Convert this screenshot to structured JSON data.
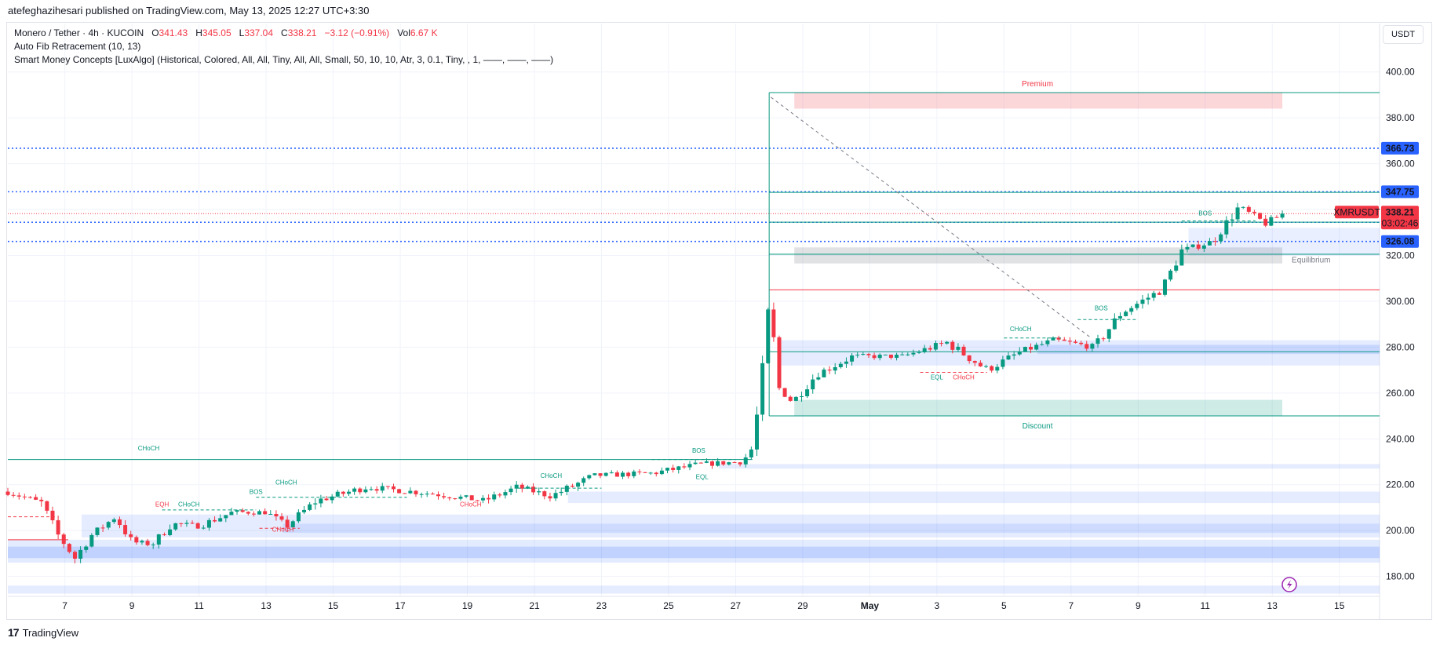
{
  "publisher_line": "atefeghazihesari published on TradingView.com, May 13, 2025 12:27 UTC+3:30",
  "legend": {
    "symbol": "Monero / Tether · 4h · KUCOIN",
    "o_label": "O",
    "o_value": "341.43",
    "h_label": "H",
    "h_value": "345.05",
    "l_label": "L",
    "l_value": "337.04",
    "c_label": "C",
    "c_value": "338.21",
    "change": "−3.12 (−0.91%)",
    "vol_label": "Vol",
    "vol_value": "6.67 K",
    "fib": "Auto Fib Retracement (10, 13)",
    "smc": "Smart Money Concepts [LuxAlgo] (Historical, Colored, All, All, Tiny, All, All, Small, 50, 10, 10, Atr, 3, 0.1, Tiny, , 1, ——, ——, ——)"
  },
  "currency": "USDT",
  "footer_brand": "TradingView",
  "footer_mark": "17",
  "colors": {
    "up": "#089981",
    "down": "#f23645",
    "level_blue": "#2962ff",
    "fib_green": "#089981"
  },
  "chart_data": {
    "type": "candlestick",
    "symbol": "XMRUSDT",
    "timeframe": "4h",
    "ylim": [
      172,
      404
    ],
    "y_ticks": [
      180,
      200,
      220,
      240,
      260,
      280,
      300,
      320,
      340,
      360,
      380,
      400
    ],
    "x_labels": [
      {
        "label": "7",
        "day": 7
      },
      {
        "label": "9",
        "day": 9
      },
      {
        "label": "11",
        "day": 11
      },
      {
        "label": "13",
        "day": 13
      },
      {
        "label": "15",
        "day": 15
      },
      {
        "label": "17",
        "day": 17
      },
      {
        "label": "19",
        "day": 19
      },
      {
        "label": "21",
        "day": 21
      },
      {
        "label": "23",
        "day": 23
      },
      {
        "label": "25",
        "day": 25
      },
      {
        "label": "27",
        "day": 27
      },
      {
        "label": "29",
        "day": 29
      },
      {
        "label": "May",
        "day": 31
      },
      {
        "label": "3",
        "day": 33
      },
      {
        "label": "5",
        "day": 35
      },
      {
        "label": "7",
        "day": 37
      },
      {
        "label": "9",
        "day": 39
      },
      {
        "label": "11",
        "day": 41
      },
      {
        "label": "13",
        "day": 43
      },
      {
        "label": "15",
        "day": 45
      }
    ],
    "x_range": [
      5.3,
      46.2
    ],
    "anchors": [
      {
        "day": 5.3,
        "price": 217
      },
      {
        "day": 6.3,
        "price": 212
      },
      {
        "day": 6.8,
        "price": 198
      },
      {
        "day": 7.3,
        "price": 188
      },
      {
        "day": 7.8,
        "price": 198
      },
      {
        "day": 8.5,
        "price": 206
      },
      {
        "day": 9.0,
        "price": 195
      },
      {
        "day": 9.6,
        "price": 194
      },
      {
        "day": 10.2,
        "price": 203
      },
      {
        "day": 11.0,
        "price": 202
      },
      {
        "day": 12.0,
        "price": 208
      },
      {
        "day": 13.0,
        "price": 208
      },
      {
        "day": 13.6,
        "price": 202
      },
      {
        "day": 14.5,
        "price": 213
      },
      {
        "day": 16.0,
        "price": 219
      },
      {
        "day": 18.0,
        "price": 216
      },
      {
        "day": 19.5,
        "price": 213
      },
      {
        "day": 20.5,
        "price": 219
      },
      {
        "day": 21.5,
        "price": 215
      },
      {
        "day": 22.8,
        "price": 224
      },
      {
        "day": 24.5,
        "price": 225
      },
      {
        "day": 26.0,
        "price": 229
      },
      {
        "day": 27.2,
        "price": 230
      },
      {
        "day": 27.5,
        "price": 236
      },
      {
        "day": 27.75,
        "price": 262
      },
      {
        "day": 28.0,
        "price": 299
      },
      {
        "day": 28.3,
        "price": 262
      },
      {
        "day": 28.7,
        "price": 256
      },
      {
        "day": 29.4,
        "price": 268
      },
      {
        "day": 30.5,
        "price": 276
      },
      {
        "day": 32.0,
        "price": 276
      },
      {
        "day": 33.3,
        "price": 282
      },
      {
        "day": 34.5,
        "price": 270
      },
      {
        "day": 35.5,
        "price": 278
      },
      {
        "day": 36.5,
        "price": 283
      },
      {
        "day": 37.7,
        "price": 280
      },
      {
        "day": 38.5,
        "price": 295
      },
      {
        "day": 39.7,
        "price": 305
      },
      {
        "day": 40.3,
        "price": 322
      },
      {
        "day": 41.2,
        "price": 326
      },
      {
        "day": 42.0,
        "price": 341
      },
      {
        "day": 42.8,
        "price": 334
      },
      {
        "day": 43.35,
        "price": 338.21
      }
    ],
    "price_levels": [
      {
        "label": "366.73",
        "price": 366.73,
        "color": "#2962ff"
      },
      {
        "label": "347.75",
        "price": 347.75,
        "color": "#2962ff"
      },
      {
        "label": "334.45",
        "price": 334.45,
        "color": "#2962ff"
      },
      {
        "label": "326.08",
        "price": 326.08,
        "color": "#2962ff"
      }
    ],
    "last_price": {
      "symbol": "XMRUSDT",
      "price": 338.21,
      "value": "338.21",
      "countdown": "03:02:46",
      "color": "#f23645"
    },
    "fib_levels": [
      391,
      347.5,
      334.5,
      320.5,
      305,
      278,
      250
    ],
    "zones": [
      {
        "label": "Premium",
        "top": 391,
        "bottom": 384,
        "color": "#f23645"
      },
      {
        "label": "Equilibrium",
        "top": 323.5,
        "bottom": 316.5,
        "color": "#787b86"
      },
      {
        "label": "Discount",
        "top": 257,
        "bottom": 250,
        "color": "#089981"
      }
    ],
    "annotations": [
      {
        "text": "CHoCH",
        "day": 9.5,
        "price": 235,
        "color": "#089981",
        "size": "large"
      },
      {
        "text": "BOS",
        "day": 25.9,
        "price": 234,
        "color": "#089981"
      },
      {
        "text": "EQL",
        "day": 26.0,
        "price": 222.5,
        "color": "#089981"
      },
      {
        "text": "CHoCH",
        "day": 21.5,
        "price": 223,
        "color": "#089981"
      },
      {
        "text": "CHoCH",
        "day": 13.6,
        "price": 220,
        "color": "#089981"
      },
      {
        "text": "BOS",
        "day": 12.7,
        "price": 216,
        "color": "#089981"
      },
      {
        "text": "EQH",
        "day": 9.9,
        "price": 210.5,
        "color": "#f23645"
      },
      {
        "text": "CHoCH",
        "day": 10.7,
        "price": 210.5,
        "color": "#089981"
      },
      {
        "text": "CHoCH",
        "day": 13.5,
        "price": 199.5,
        "color": "#f23645"
      },
      {
        "text": "CHoCH",
        "day": 19.1,
        "price": 210.5,
        "color": "#f23645"
      },
      {
        "text": "CHoCH",
        "day": 35.5,
        "price": 287,
        "color": "#089981"
      },
      {
        "text": "EQL",
        "day": 33.0,
        "price": 266,
        "color": "#089981"
      },
      {
        "text": "CHoCH",
        "day": 33.8,
        "price": 266,
        "color": "#f23645"
      },
      {
        "text": "BOS",
        "day": 37.9,
        "price": 296,
        "color": "#089981"
      },
      {
        "text": "BOS",
        "day": 41.0,
        "price": 337.5,
        "color": "#089981"
      }
    ]
  }
}
